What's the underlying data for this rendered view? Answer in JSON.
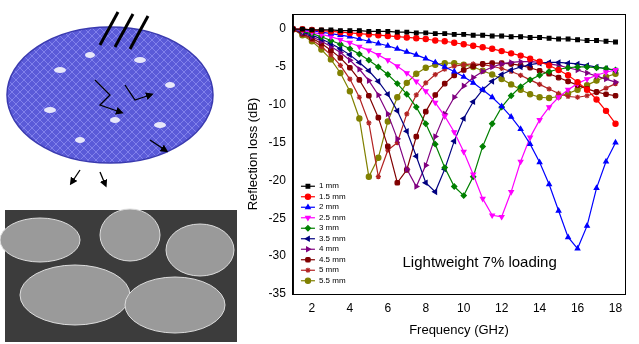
{
  "chart_data": {
    "type": "line",
    "xlabel": "Frequency (GHz)",
    "ylabel": "Reflection loss (dB)",
    "annotation": "Lightweight 7% loading",
    "x": [
      1,
      1.5,
      2,
      2.5,
      3,
      3.5,
      4,
      4.5,
      5,
      5.5,
      6,
      6.5,
      7,
      7.5,
      8,
      8.5,
      9,
      9.5,
      10,
      10.5,
      11,
      11.5,
      12,
      12.5,
      13,
      13.5,
      14,
      14.5,
      15,
      15.5,
      16,
      16.5,
      17,
      17.5,
      18
    ],
    "xlim": [
      1,
      18.5
    ],
    "xticks": [
      2,
      4,
      6,
      8,
      10,
      12,
      14,
      16,
      18
    ],
    "ylim": [
      -35,
      2
    ],
    "yticks": [
      -35,
      -30,
      -25,
      -20,
      -15,
      -10,
      -5,
      0
    ],
    "grid": false,
    "legend": "lower left",
    "series": [
      {
        "name": "1 mm",
        "color": "#000000",
        "marker": "square",
        "values": [
          0,
          0,
          -0.1,
          -0.1,
          -0.1,
          -0.2,
          -0.2,
          -0.2,
          -0.3,
          -0.3,
          -0.3,
          -0.4,
          -0.4,
          -0.5,
          -0.5,
          -0.6,
          -0.6,
          -0.7,
          -0.7,
          -0.8,
          -0.8,
          -0.9,
          -0.9,
          -1.0,
          -1.0,
          -1.1,
          -1.1,
          -1.2,
          -1.3,
          -1.3,
          -1.4,
          -1.5,
          -1.5,
          -1.6,
          -1.7
        ]
      },
      {
        "name": "1.5 mm",
        "color": "#ff0000",
        "marker": "circle",
        "values": [
          0,
          0,
          -0.1,
          -0.2,
          -0.3,
          -0.4,
          -0.5,
          -0.6,
          -0.7,
          -0.8,
          -0.9,
          -1.0,
          -1.1,
          -1.2,
          -1.3,
          -1.5,
          -1.6,
          -1.8,
          -2.0,
          -2.2,
          -2.4,
          -2.6,
          -2.9,
          -3.2,
          -3.5,
          -3.9,
          -4.3,
          -4.8,
          -5.4,
          -6.1,
          -7.0,
          -8.0,
          -9.3,
          -10.8,
          -12.5
        ]
      },
      {
        "name": "2 mm",
        "color": "#0000ff",
        "marker": "triangle-up",
        "values": [
          0,
          -0.1,
          -0.2,
          -0.4,
          -0.6,
          -0.8,
          -1.0,
          -1.3,
          -1.6,
          -1.9,
          -2.2,
          -2.6,
          -3.0,
          -3.4,
          -3.9,
          -4.4,
          -5.0,
          -5.6,
          -6.3,
          -7.1,
          -8.0,
          -9.0,
          -10.2,
          -11.6,
          -13.2,
          -15.2,
          -17.6,
          -20.5,
          -24.0,
          -27.5,
          -29.0,
          -26.0,
          -21.0,
          -17.5,
          -15.0
        ]
      },
      {
        "name": "2.5 mm",
        "color": "#ff00ff",
        "marker": "triangle-down",
        "values": [
          0,
          -0.2,
          -0.4,
          -0.7,
          -1.0,
          -1.4,
          -1.8,
          -2.3,
          -2.8,
          -3.4,
          -4.1,
          -4.9,
          -5.8,
          -6.9,
          -8.2,
          -9.7,
          -11.5,
          -13.6,
          -16.2,
          -19.2,
          -22.4,
          -24.6,
          -24.8,
          -21.5,
          -17.5,
          -14.3,
          -12.0,
          -10.3,
          -9.0,
          -8.0,
          -7.2,
          -6.6,
          -6.1,
          -5.7,
          -5.4
        ]
      },
      {
        "name": "3 mm",
        "color": "#008000",
        "marker": "diamond",
        "values": [
          0,
          -0.3,
          -0.6,
          -1.0,
          -1.5,
          -2.0,
          -2.6,
          -3.3,
          -4.1,
          -5.0,
          -6.0,
          -7.2,
          -8.6,
          -10.3,
          -12.5,
          -15.2,
          -18.3,
          -20.8,
          -22.0,
          -19.5,
          -15.5,
          -12.5,
          -10.3,
          -8.8,
          -7.6,
          -6.7,
          -6.1,
          -5.6,
          -5.3,
          -5.1,
          -5.0,
          -5.0,
          -5.1,
          -5.2,
          -5.4
        ]
      },
      {
        "name": "3.5 mm",
        "color": "#000080",
        "marker": "triangle-left",
        "values": [
          0,
          -0.4,
          -0.8,
          -1.3,
          -1.9,
          -2.6,
          -3.4,
          -4.4,
          -5.5,
          -6.9,
          -8.6,
          -10.8,
          -13.5,
          -16.8,
          -20.3,
          -21.5,
          -18.5,
          -14.8,
          -11.8,
          -9.6,
          -8.0,
          -6.9,
          -6.0,
          -5.4,
          -5.0,
          -4.7,
          -4.5,
          -4.4,
          -4.4,
          -4.5,
          -4.6,
          -4.8,
          -5.0,
          -5.2,
          -5.5
        ]
      },
      {
        "name": "4 mm",
        "color": "#800080",
        "marker": "triangle-right",
        "values": [
          0,
          -0.5,
          -1.0,
          -1.6,
          -2.3,
          -3.1,
          -4.1,
          -5.3,
          -6.8,
          -8.7,
          -11.2,
          -14.5,
          -18.5,
          -20.8,
          -18.0,
          -14.2,
          -11.2,
          -9.0,
          -7.5,
          -6.4,
          -5.6,
          -5.0,
          -4.6,
          -4.4,
          -4.3,
          -4.3,
          -4.4,
          -4.6,
          -4.8,
          -5.1,
          -5.4,
          -5.8,
          -6.2,
          -6.6,
          -7.0
        ]
      },
      {
        "name": "4.5 mm",
        "color": "#800000",
        "marker": "hexagon",
        "values": [
          0,
          -0.6,
          -1.2,
          -1.9,
          -2.8,
          -3.8,
          -5.1,
          -6.7,
          -8.8,
          -11.7,
          -15.5,
          -20.3,
          -18.6,
          -14.2,
          -10.9,
          -8.7,
          -7.2,
          -6.1,
          -5.4,
          -4.9,
          -4.6,
          -4.5,
          -4.5,
          -4.6,
          -4.8,
          -5.1,
          -5.5,
          -5.9,
          -6.4,
          -6.9,
          -7.4,
          -7.9,
          -8.3,
          -8.6,
          -8.8
        ]
      },
      {
        "name": "5 mm",
        "color": "#b22222",
        "marker": "star",
        "values": [
          0,
          -0.7,
          -1.4,
          -2.3,
          -3.4,
          -4.8,
          -6.6,
          -9.0,
          -12.4,
          -19.5,
          -16.0,
          -15.0,
          -11.2,
          -8.7,
          -7.1,
          -6.0,
          -5.3,
          -4.9,
          -4.7,
          -4.6,
          -4.7,
          -4.9,
          -5.2,
          -5.6,
          -6.1,
          -6.7,
          -7.3,
          -7.9,
          -8.5,
          -8.9,
          -9.0,
          -8.8,
          -8.4,
          -7.8,
          -7.2
        ]
      },
      {
        "name": "5.5 mm",
        "color": "#808000",
        "marker": "pentagon",
        "values": [
          0,
          -0.8,
          -1.6,
          -2.7,
          -4.0,
          -5.8,
          -8.2,
          -11.8,
          -19.5,
          -17.0,
          -12.2,
          -9.0,
          -7.1,
          -5.9,
          -5.1,
          -4.7,
          -4.5,
          -4.5,
          -4.7,
          -5.0,
          -5.5,
          -6.0,
          -6.6,
          -7.3,
          -8.0,
          -8.6,
          -9.0,
          -9.1,
          -8.9,
          -8.5,
          -8.0,
          -7.4,
          -6.8,
          -6.3,
          -5.9
        ]
      }
    ]
  }
}
